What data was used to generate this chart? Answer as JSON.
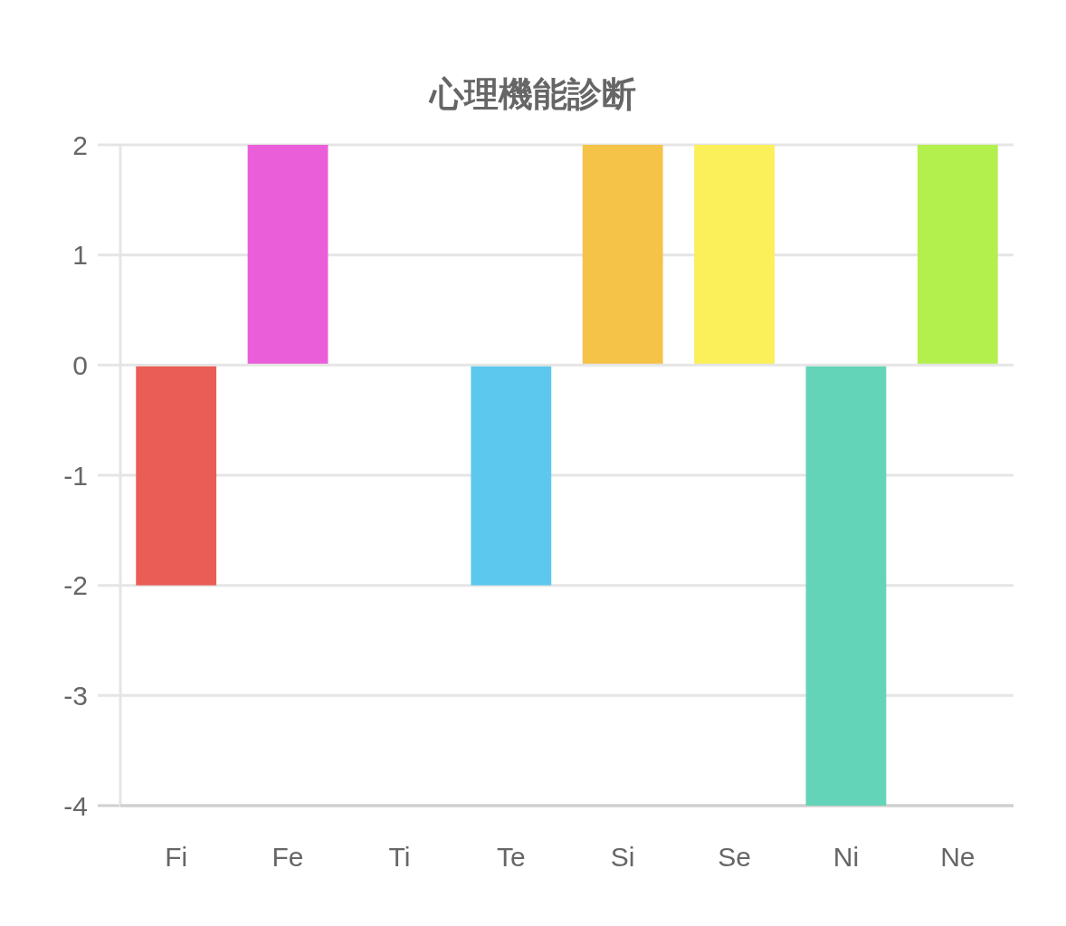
{
  "chart_data": {
    "type": "bar",
    "title": "心理機能診断",
    "categories": [
      "Fi",
      "Fe",
      "Ti",
      "Te",
      "Si",
      "Se",
      "Ni",
      "Ne"
    ],
    "values": [
      -2,
      2,
      0,
      -2,
      2,
      2,
      -4,
      2
    ],
    "colors": [
      "#e95d56",
      "#ea5fd9",
      null,
      "#5dc8ed",
      "#f4c347",
      "#fbef5a",
      "#64d4b8",
      "#b3f04d"
    ],
    "ylim": [
      -4,
      2
    ],
    "yticks": [
      -4,
      -3,
      -2,
      -1,
      0,
      1,
      2
    ],
    "grid": "y"
  }
}
